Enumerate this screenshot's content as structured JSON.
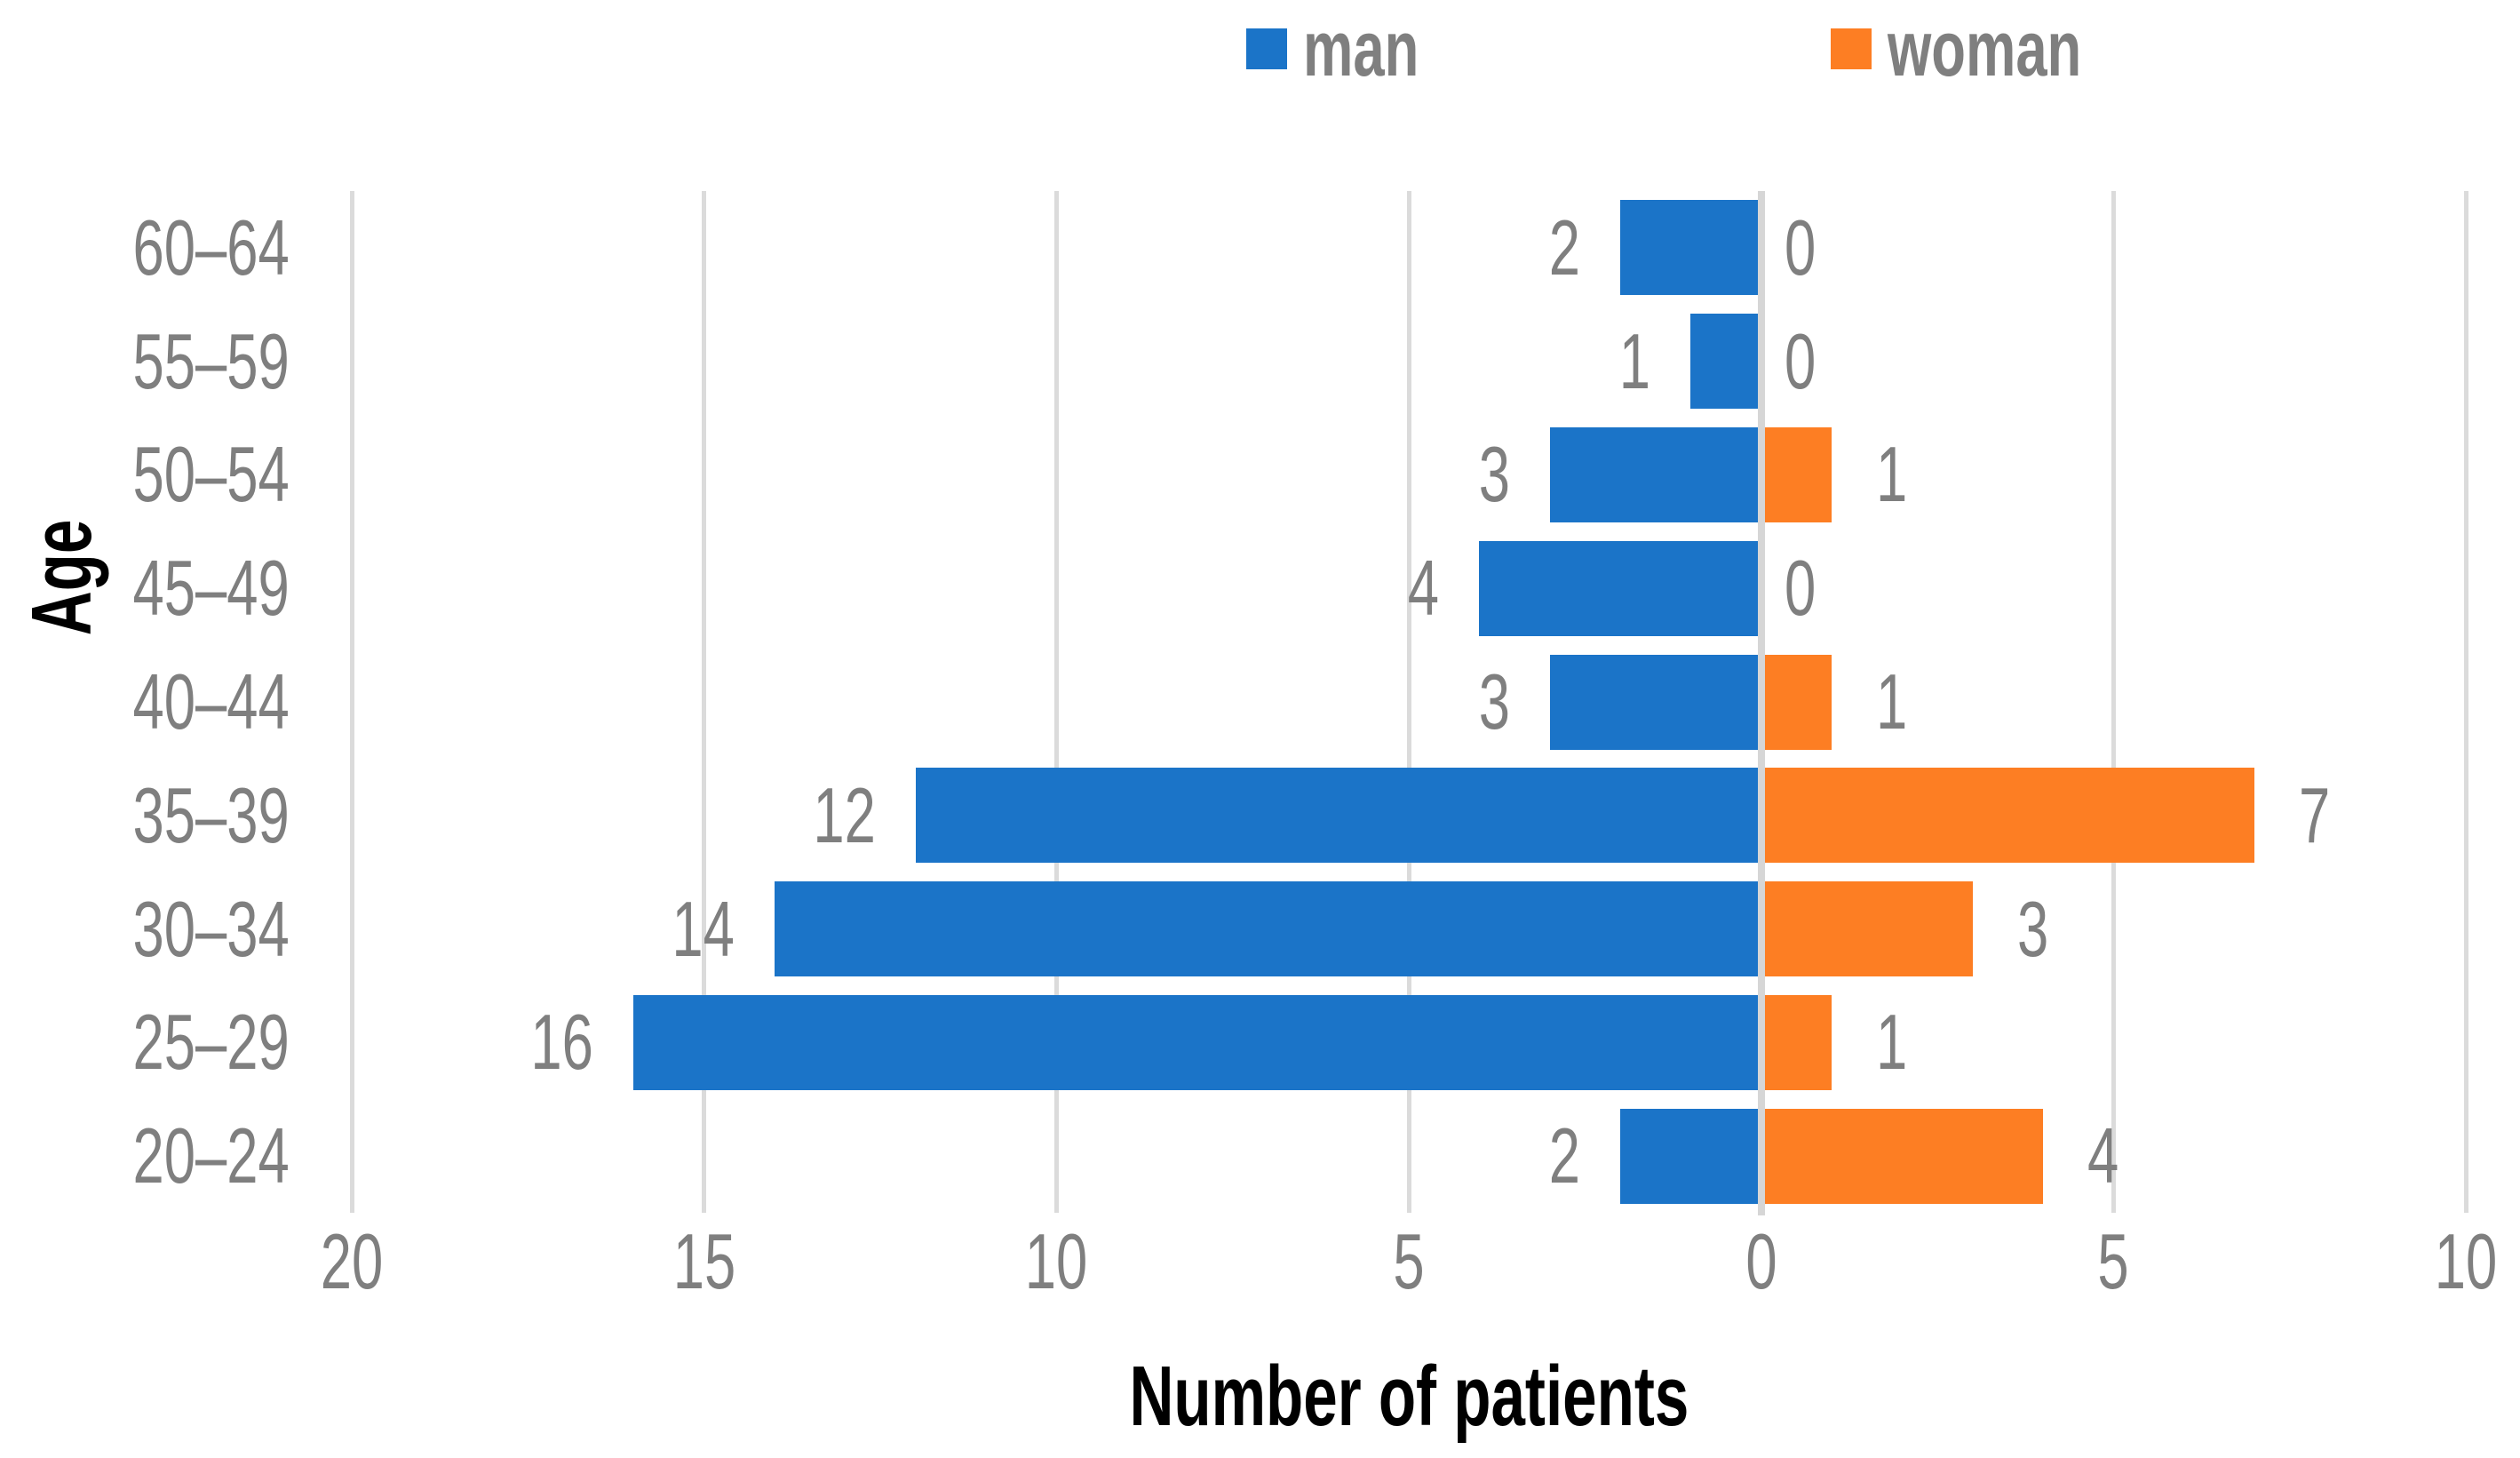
{
  "chart_data": {
    "type": "bar",
    "variant": "diverging-horizontal-pyramid",
    "title": "",
    "xlabel": "Number of patients",
    "ylabel": "Age",
    "categories": [
      "60–64",
      "55–59",
      "50–54",
      "45–49",
      "40–44",
      "35–39",
      "30–34",
      "25–29",
      "20–24"
    ],
    "series": [
      {
        "name": "man",
        "side": "left",
        "color": "#1B74C8",
        "values": [
          2,
          1,
          3,
          4,
          3,
          12,
          14,
          16,
          2
        ]
      },
      {
        "name": "woman",
        "side": "right",
        "color": "#FD7E23",
        "values": [
          0,
          0,
          1,
          0,
          1,
          7,
          3,
          1,
          4
        ]
      }
    ],
    "x_ticks": [
      {
        "label": "20",
        "value": -20
      },
      {
        "label": "15",
        "value": -15
      },
      {
        "label": "10",
        "value": -10
      },
      {
        "label": "5",
        "value": -5
      },
      {
        "label": "0",
        "value": 0
      },
      {
        "label": "5",
        "value": 5
      },
      {
        "label": "10",
        "value": 10
      }
    ],
    "x_range": [
      -20,
      10
    ],
    "gridlines": true,
    "data_labels": true,
    "legend_position": "top",
    "colors": {
      "grid": "#DBDBDB",
      "zero_line": "#D6D6D6",
      "label_text": "#7F7F7F",
      "legend_text": "#7F7F7F",
      "axis_title_text": "#000000"
    }
  }
}
